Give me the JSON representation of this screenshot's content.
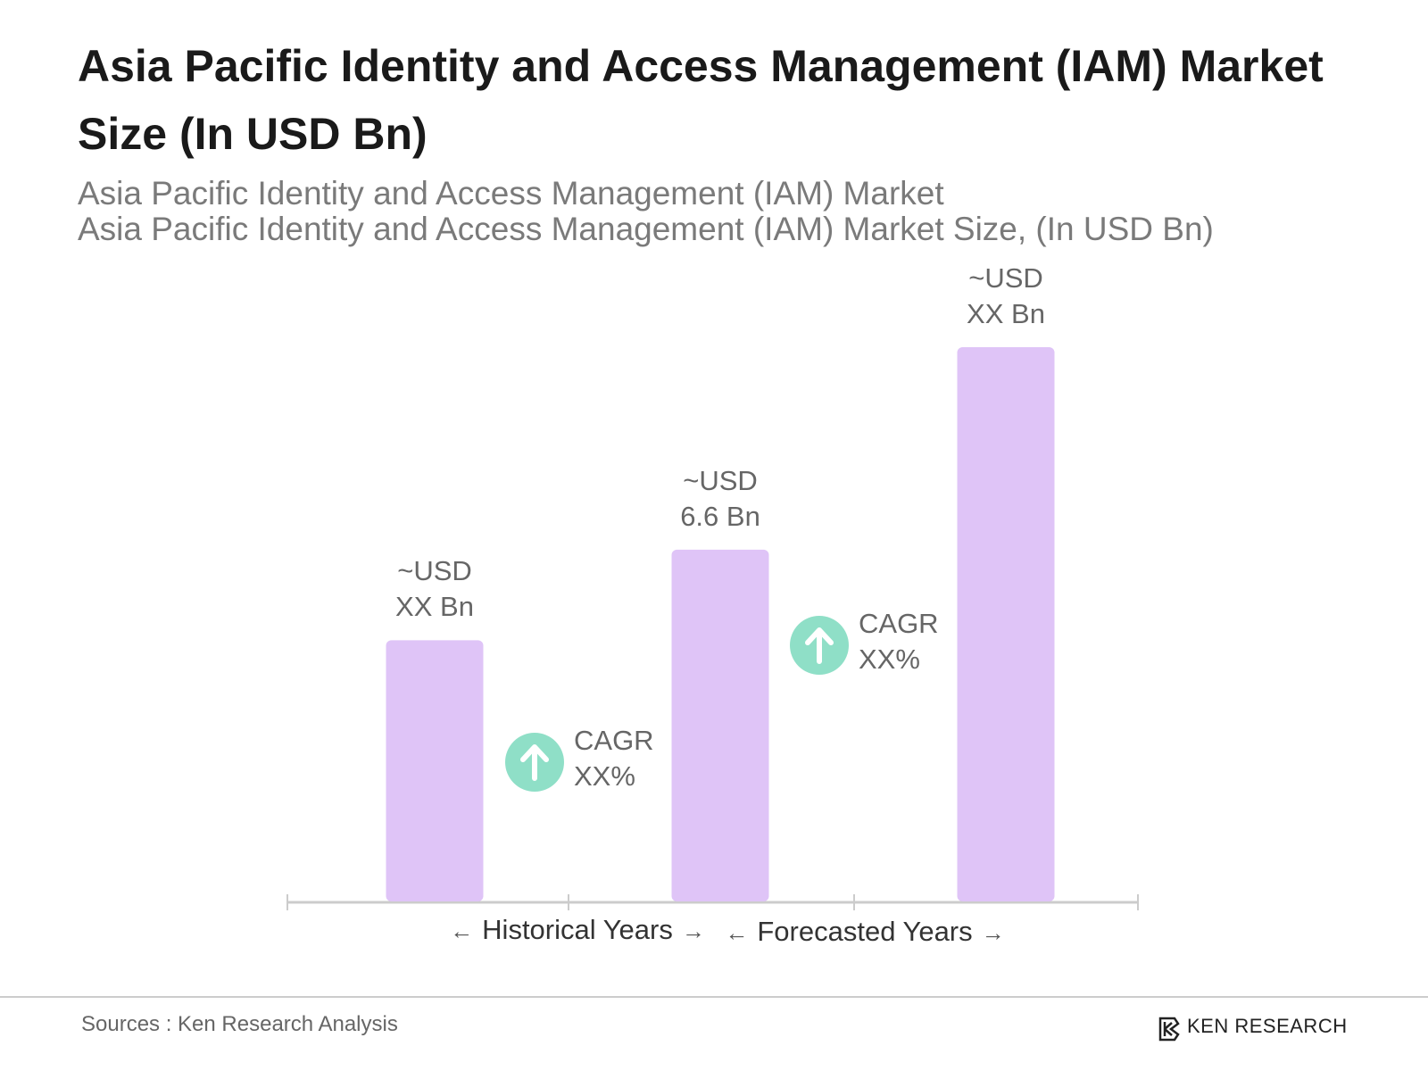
{
  "chart_data": {
    "type": "bar",
    "title": "Asia Pacific Identity and Access Management (IAM) Market Size (In USD Bn)",
    "subtitle": [
      "Asia Pacific Identity and Access Management (IAM) Market",
      "Asia Pacific Identity and Access Management (IAM) Market Size, (In USD Bn)"
    ],
    "categories": [
      null,
      null,
      null
    ],
    "values": [
      4.9,
      6.6,
      10.4
    ],
    "value_labels": [
      "~USD XX Bn",
      "~USD 6.6 Bn",
      "~USD XX Bn"
    ],
    "color": "#dfc4f7",
    "annotations": [
      "CAGR XX%",
      "CAGR XX%"
    ],
    "annotation_color": "#8fdfc7",
    "period_labels": [
      "Historical Years",
      "Forecasted Years"
    ]
  },
  "footer": {
    "source": "Sources : Ken Research Analysis",
    "logo": "KEN RESEARCH"
  }
}
